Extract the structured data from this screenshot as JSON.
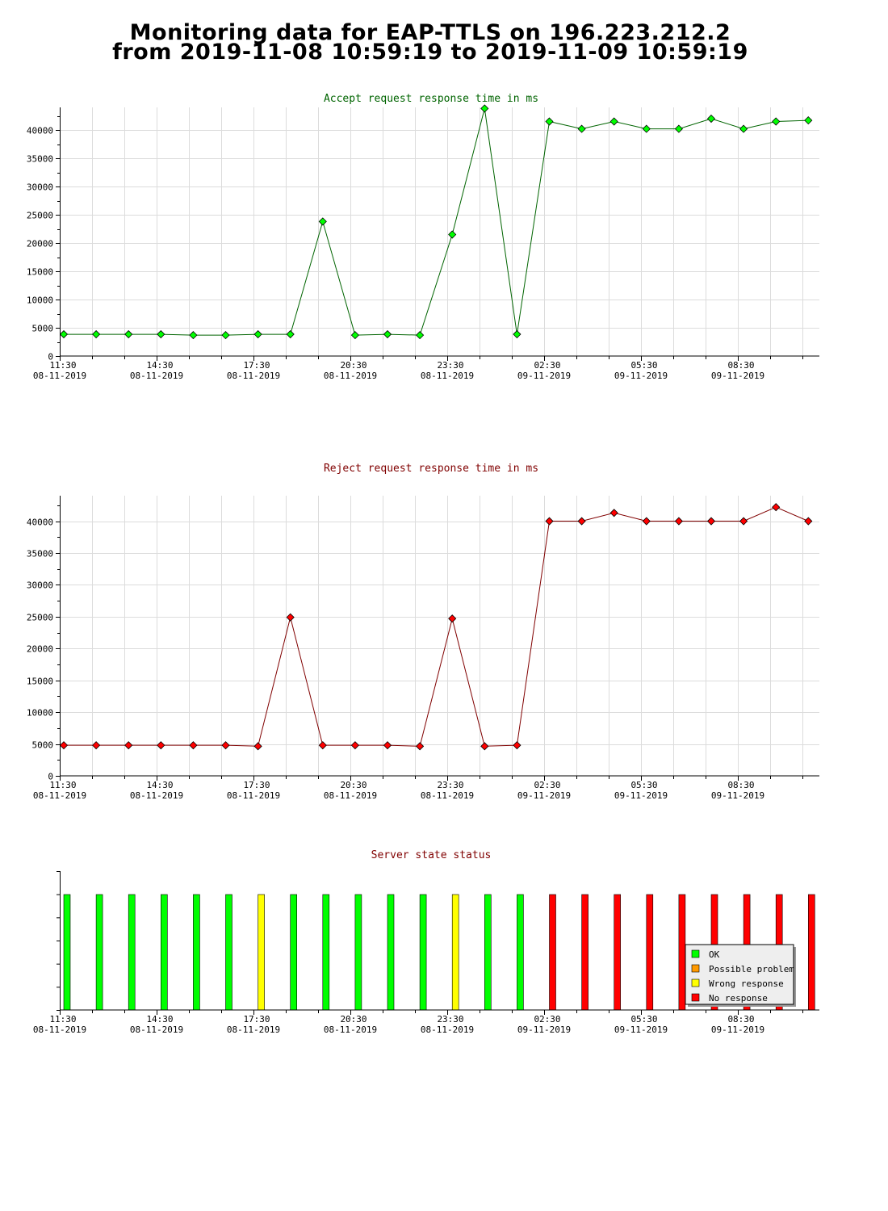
{
  "page": {
    "title_line1": "Monitoring data for EAP-TTLS on 196.223.212.2",
    "title_line2": "from 2019-11-08 10:59:19 to 2019-11-09 10:59:19"
  },
  "x_ticks": [
    {
      "time": "11:30",
      "date": "08-11-2019"
    },
    {
      "time": "14:30",
      "date": "08-11-2019"
    },
    {
      "time": "17:30",
      "date": "08-11-2019"
    },
    {
      "time": "20:30",
      "date": "08-11-2019"
    },
    {
      "time": "23:30",
      "date": "08-11-2019"
    },
    {
      "time": "02:30",
      "date": "09-11-2019"
    },
    {
      "time": "05:30",
      "date": "09-11-2019"
    },
    {
      "time": "08:30",
      "date": "09-11-2019"
    }
  ],
  "chart_data": [
    {
      "type": "line",
      "title": "Accept request response time in ms",
      "xlabel": "",
      "ylabel": "",
      "x_range": [
        "2019-11-08 11:30",
        "2019-11-09 11:00"
      ],
      "ylim": [
        0,
        44000
      ],
      "yticks": [
        0,
        5000,
        10000,
        15000,
        20000,
        25000,
        30000,
        35000,
        40000
      ],
      "grid": true,
      "colors": {
        "line": "#006400",
        "marker": "#00ff00",
        "title": "#006400"
      },
      "x": [
        "11:34",
        "12:34",
        "13:34",
        "14:34",
        "15:34",
        "16:34",
        "17:34",
        "18:34",
        "19:34",
        "20:34",
        "21:34",
        "22:34",
        "23:34",
        "00:34",
        "01:34",
        "02:34",
        "03:34",
        "04:34",
        "05:34",
        "06:34",
        "07:34",
        "08:34",
        "09:34",
        "10:34"
      ],
      "values": [
        3850,
        3850,
        3850,
        3850,
        3700,
        3700,
        3850,
        3850,
        23800,
        3700,
        3850,
        3700,
        21500,
        43800,
        3850,
        41500,
        40200,
        41500,
        40200,
        40200,
        42000,
        40200,
        41500,
        41700
      ]
    },
    {
      "type": "line",
      "title": "Reject request response time in ms",
      "xlabel": "",
      "ylabel": "",
      "x_range": [
        "2019-11-08 11:30",
        "2019-11-09 11:00"
      ],
      "ylim": [
        0,
        44000
      ],
      "yticks": [
        0,
        5000,
        10000,
        15000,
        20000,
        25000,
        30000,
        35000,
        40000
      ],
      "grid": true,
      "colors": {
        "line": "#800000",
        "marker": "#ff0000",
        "title": "#800000"
      },
      "x": [
        "11:34",
        "12:34",
        "13:34",
        "14:34",
        "15:34",
        "16:34",
        "17:34",
        "18:34",
        "19:34",
        "20:34",
        "21:34",
        "22:34",
        "23:34",
        "00:34",
        "01:34",
        "02:34",
        "03:34",
        "04:34",
        "05:34",
        "06:34",
        "07:34",
        "08:34",
        "09:34",
        "10:34"
      ],
      "values": [
        4800,
        4800,
        4800,
        4800,
        4800,
        4800,
        4650,
        24900,
        4800,
        4800,
        4800,
        4650,
        24700,
        4650,
        4800,
        40000,
        40000,
        41300,
        40000,
        40000,
        40000,
        40000,
        42200,
        40000
      ]
    },
    {
      "type": "bar",
      "title": "Server state status",
      "legend_position": "bottom-right",
      "grid": false,
      "legend": [
        {
          "label": "OK",
          "color": "#00ff00"
        },
        {
          "label": "Possible problem",
          "color": "#ff9900"
        },
        {
          "label": "Wrong response",
          "color": "#ffff00"
        },
        {
          "label": "No response",
          "color": "#ff0000"
        }
      ],
      "x": [
        "11:34",
        "12:34",
        "13:34",
        "14:34",
        "15:34",
        "16:34",
        "17:34",
        "18:34",
        "19:34",
        "20:34",
        "21:34",
        "22:34",
        "23:34",
        "00:34",
        "01:34",
        "02:34",
        "03:34",
        "04:34",
        "05:34",
        "06:34",
        "07:34",
        "08:34",
        "09:34",
        "10:34"
      ],
      "states": [
        "OK",
        "OK",
        "OK",
        "OK",
        "OK",
        "OK",
        "Wrong response",
        "OK",
        "OK",
        "OK",
        "OK",
        "OK",
        "Wrong response",
        "OK",
        "OK",
        "No response",
        "No response",
        "No response",
        "No response",
        "No response",
        "No response",
        "No response",
        "No response",
        "No response"
      ]
    }
  ]
}
